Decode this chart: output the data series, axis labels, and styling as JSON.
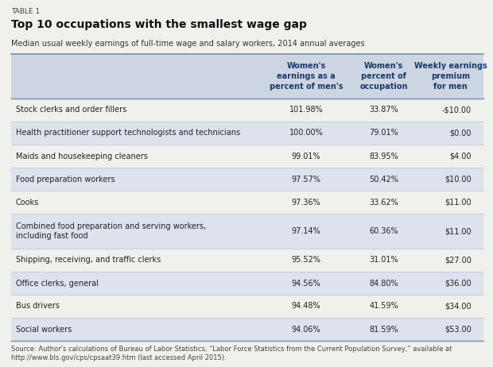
{
  "table_label": "TABLE 1",
  "title": "Top 10 occupations with the smallest wage gap",
  "subtitle": "Median usual weekly earnings of full-time wage and salary workers, 2014 annual averages",
  "col_headers": [
    "Women's\nearnings as a\npercent of men's",
    "Women's\npercent of\noccupation",
    "Weekly earnings\npremium\nfor men"
  ],
  "occupations": [
    "Stock clerks and order fillers",
    "Health practitioner support technologists and technicians",
    "Maids and housekeeping cleaners",
    "Food preparation workers",
    "Cooks",
    "Combined food preparation and serving workers,\nincluding fast food",
    "Shipping, receiving, and traffic clerks",
    "Office clerks, general",
    "Bus drivers",
    "Social workers"
  ],
  "col1": [
    "101.98%",
    "100.00%",
    "99.01%",
    "97.57%",
    "97.36%",
    "97.14%",
    "95.52%",
    "94.56%",
    "94.48%",
    "94.06%"
  ],
  "col2": [
    "33.87%",
    "79.01%",
    "83.95%",
    "50.42%",
    "33.62%",
    "60.36%",
    "31.01%",
    "84.80%",
    "41.59%",
    "81.59%"
  ],
  "col3": [
    "-$10.00",
    "$0.00",
    "$4.00",
    "$10.00",
    "$11.00",
    "$11.00",
    "$27.00",
    "$36.00",
    "$34.00",
    "$53.00"
  ],
  "header_bg": "#cdd5e3",
  "row_bg_alt": "#dde2ed",
  "row_bg_white": "#f0f0ec",
  "header_text_color": "#1a3a6b",
  "source_text_line1": "Source: Author's calculations of Bureau of Labor Statistics, “Labor Force Statistics from the Current Population Survey,” available at",
  "source_text_line2": "http://www.bls.gov/cps/cpsaat39.htm (last accessed April 2015).",
  "bg_color": "#f0f0ec",
  "top_border_color": "#7a8fa8",
  "row_line_color": "#c0c8d8"
}
